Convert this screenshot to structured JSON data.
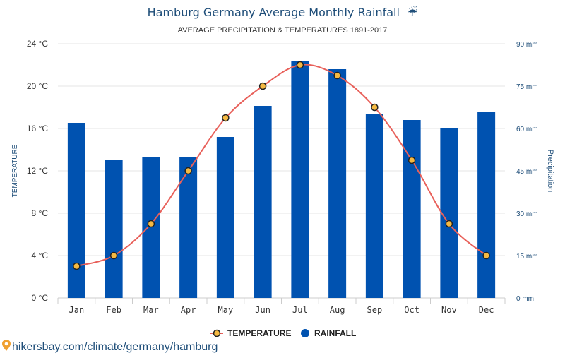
{
  "chart_data": {
    "type": "bar",
    "title": "Hamburg Germany Average Monthly Rainfall",
    "title_icon": "umbrella-icon",
    "subtitle": "AVERAGE PRECIPITATION & TEMPERATURES 1891-2017",
    "categories": [
      "Jan",
      "Feb",
      "Mar",
      "Apr",
      "May",
      "Jun",
      "Jul",
      "Aug",
      "Sep",
      "Oct",
      "Nov",
      "Dec"
    ],
    "series": [
      {
        "name": "TEMPERATURE",
        "type": "line",
        "axis": "left",
        "values": [
          3,
          4,
          7,
          12,
          17,
          20,
          22,
          21,
          18,
          13,
          7,
          4
        ],
        "color": "#e8605a",
        "marker_fill": "#f5b942"
      },
      {
        "name": "RAINFALL",
        "type": "bar",
        "axis": "right",
        "values": [
          62,
          49,
          50,
          50,
          57,
          68,
          84,
          81,
          65,
          63,
          60,
          66
        ],
        "color": "#0052b0"
      }
    ],
    "ylabel": "TEMPERATURE",
    "ylabel_right": "Precipitation",
    "ylim": [
      0,
      24
    ],
    "ylim_right": [
      0,
      90
    ],
    "yticks": [
      0,
      4,
      8,
      12,
      16,
      20,
      24
    ],
    "yticks_labels": [
      "0 °C",
      "4 °C",
      "8 °C",
      "12 °C",
      "16 °C",
      "20 °C",
      "24 °C"
    ],
    "yticks_right": [
      0,
      15,
      30,
      45,
      60,
      75,
      90
    ],
    "yticks_right_labels": [
      "0 mm",
      "15 mm",
      "30 mm",
      "45 mm",
      "60 mm",
      "75 mm",
      "90 mm"
    ],
    "grid": true,
    "legend_position": "bottom-center"
  },
  "source": {
    "icon": "map-pin-icon",
    "text": "hikersbay.com/climate/germany/hamburg"
  },
  "colors": {
    "bar": "#0052b0",
    "line": "#e8605a",
    "marker": "#f5b942",
    "title": "#1f4e79",
    "grid": "#e6e6e6"
  }
}
